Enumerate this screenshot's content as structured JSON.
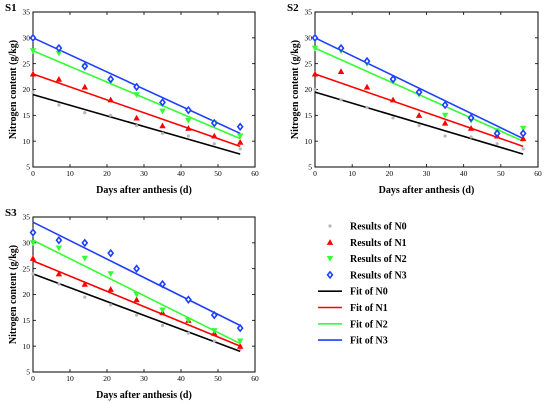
{
  "chart_data": [
    {
      "type": "scatter",
      "title": "S1",
      "xlabel": "Days after anthesis (d)",
      "ylabel": "Nitrogen content (g/kg)",
      "xlim": [
        0,
        60
      ],
      "ylim": [
        5,
        35
      ],
      "xticks": [
        0,
        10,
        20,
        30,
        40,
        50,
        60
      ],
      "yticks": [
        5,
        10,
        15,
        20,
        25,
        30,
        35
      ],
      "grid": false,
      "series": [
        {
          "name": "Results of  N0",
          "x": [
            0,
            7,
            14,
            21,
            28,
            35,
            42,
            49,
            56
          ],
          "y": [
            19.5,
            17,
            15.5,
            15,
            13,
            11.5,
            11,
            9.5,
            8.5
          ]
        },
        {
          "name": "Results of  N1",
          "x": [
            0,
            7,
            14,
            21,
            28,
            35,
            42,
            49,
            56
          ],
          "y": [
            23,
            22,
            20.5,
            18,
            14.5,
            13,
            12.5,
            11,
            9.8
          ]
        },
        {
          "name": "Results of  N2",
          "x": [
            0,
            7,
            14,
            21,
            28,
            35,
            42,
            49,
            56
          ],
          "y": [
            27.5,
            27,
            24.5,
            21.5,
            19,
            15.8,
            14,
            13.5,
            11
          ]
        },
        {
          "name": "Results of  N3",
          "x": [
            0,
            7,
            14,
            21,
            28,
            35,
            42,
            49,
            56
          ],
          "y": [
            30,
            28,
            24.5,
            22,
            20.5,
            17.5,
            16,
            13.5,
            12.8
          ]
        },
        {
          "name": "Fit of  N0",
          "line": [
            [
              0,
              19
            ],
            [
              56,
              7.5
            ]
          ]
        },
        {
          "name": "Fit of  N1",
          "line": [
            [
              0,
              23
            ],
            [
              56,
              9
            ]
          ]
        },
        {
          "name": "Fit of  N2",
          "line": [
            [
              0,
              27.5
            ],
            [
              56,
              10.5
            ]
          ]
        },
        {
          "name": "Fit of  N3",
          "line": [
            [
              0,
              30
            ],
            [
              56,
              11.5
            ]
          ]
        }
      ]
    },
    {
      "type": "scatter",
      "title": "S2",
      "xlabel": "Days after anthesis (d)",
      "ylabel": "Nitrogen content (g/kg)",
      "xlim": [
        0,
        60
      ],
      "ylim": [
        5,
        35
      ],
      "xticks": [
        0,
        10,
        20,
        30,
        40,
        50,
        60
      ],
      "yticks": [
        5,
        10,
        15,
        20,
        25,
        30,
        35
      ],
      "grid": false,
      "series": [
        {
          "name": "Results of  N0",
          "x": [
            0,
            7,
            14,
            21,
            28,
            35,
            42,
            49,
            56
          ],
          "y": [
            20,
            18,
            16.5,
            14.5,
            13,
            11,
            10.8,
            9.5,
            8.5
          ]
        },
        {
          "name": "Results of  N1",
          "x": [
            0,
            7,
            14,
            21,
            28,
            35,
            42,
            49,
            56
          ],
          "y": [
            23,
            23.5,
            20.5,
            18,
            15,
            13.5,
            12.5,
            11,
            10.5
          ]
        },
        {
          "name": "Results of  N2",
          "x": [
            0,
            7,
            14,
            21,
            28,
            35,
            42,
            49,
            56
          ],
          "y": [
            28,
            27.5,
            25,
            21.5,
            19,
            15,
            14,
            12,
            12.5
          ]
        },
        {
          "name": "Results of  N3",
          "x": [
            0,
            7,
            14,
            21,
            28,
            35,
            42,
            49,
            56
          ],
          "y": [
            30,
            28,
            25.5,
            22,
            19.5,
            17,
            14.5,
            11.5,
            11.5
          ]
        },
        {
          "name": "Fit of  N0",
          "line": [
            [
              0,
              19.5
            ],
            [
              56,
              7.5
            ]
          ]
        },
        {
          "name": "Fit of  N1",
          "line": [
            [
              0,
              23
            ],
            [
              56,
              9
            ]
          ]
        },
        {
          "name": "Fit of  N2",
          "line": [
            [
              0,
              28
            ],
            [
              56,
              10
            ]
          ]
        },
        {
          "name": "Fit of  N3",
          "line": [
            [
              0,
              30
            ],
            [
              56,
              10.5
            ]
          ]
        }
      ]
    },
    {
      "type": "scatter",
      "title": "S3",
      "xlabel": "Days after anthesis (d)",
      "ylabel": "Nitrogen content (g/kg)",
      "xlim": [
        0,
        60
      ],
      "ylim": [
        5,
        35
      ],
      "xticks": [
        0,
        10,
        20,
        30,
        40,
        50,
        60
      ],
      "yticks": [
        5,
        10,
        15,
        20,
        25,
        30,
        35
      ],
      "grid": false,
      "series": [
        {
          "name": "Results of  N0",
          "x": [
            0,
            7,
            14,
            21,
            28,
            35,
            42,
            49,
            56
          ],
          "y": [
            24,
            22,
            19.5,
            18,
            16,
            14,
            12.5,
            11,
            9.5
          ]
        },
        {
          "name": "Results of  N1",
          "x": [
            0,
            7,
            14,
            21,
            28,
            35,
            42,
            49,
            56
          ],
          "y": [
            27,
            24,
            22,
            21,
            19,
            16.5,
            15,
            12.5,
            10
          ]
        },
        {
          "name": "Results of  N2",
          "x": [
            0,
            7,
            14,
            21,
            28,
            35,
            42,
            49,
            56
          ],
          "y": [
            30,
            29,
            27,
            24,
            20,
            17,
            15,
            13,
            11
          ]
        },
        {
          "name": "Results of  N3",
          "x": [
            0,
            7,
            14,
            21,
            28,
            35,
            42,
            49,
            56
          ],
          "y": [
            32,
            30.5,
            30,
            28,
            25,
            22,
            19,
            16,
            13.5
          ]
        },
        {
          "name": "Fit of  N0",
          "line": [
            [
              0,
              24
            ],
            [
              56,
              9
            ]
          ]
        },
        {
          "name": "Fit of  N1",
          "line": [
            [
              0,
              26.5
            ],
            [
              56,
              10
            ]
          ]
        },
        {
          "name": "Fit of  N2",
          "line": [
            [
              0,
              30.5
            ],
            [
              56,
              10.5
            ]
          ]
        },
        {
          "name": "Fit of  N3",
          "line": [
            [
              0,
              34
            ],
            [
              56,
              14
            ]
          ]
        }
      ]
    }
  ],
  "legend": {
    "items": [
      {
        "label": "Results of  N0",
        "marker": "dot",
        "color": "#b8b8b8"
      },
      {
        "label": "Results of  N1",
        "marker": "triangle-up",
        "color": "#ff0000"
      },
      {
        "label": "Results of  N2",
        "marker": "triangle-down",
        "color": "#33ff33"
      },
      {
        "label": "Results of  N3",
        "marker": "diamond",
        "color": "#1f3fff"
      },
      {
        "label": "Fit of  N0",
        "marker": "line",
        "color": "#000000"
      },
      {
        "label": "Fit of  N1",
        "marker": "line",
        "color": "#ff0000"
      },
      {
        "label": "Fit of  N2",
        "marker": "line",
        "color": "#33ff33"
      },
      {
        "label": "Fit of  N3",
        "marker": "line",
        "color": "#1f3fff"
      }
    ]
  },
  "colors": {
    "N0_marker": "#b8b8b8",
    "N0_line": "#000000",
    "N1": "#ff0000",
    "N2": "#33ff33",
    "N3": "#1f3fff"
  }
}
